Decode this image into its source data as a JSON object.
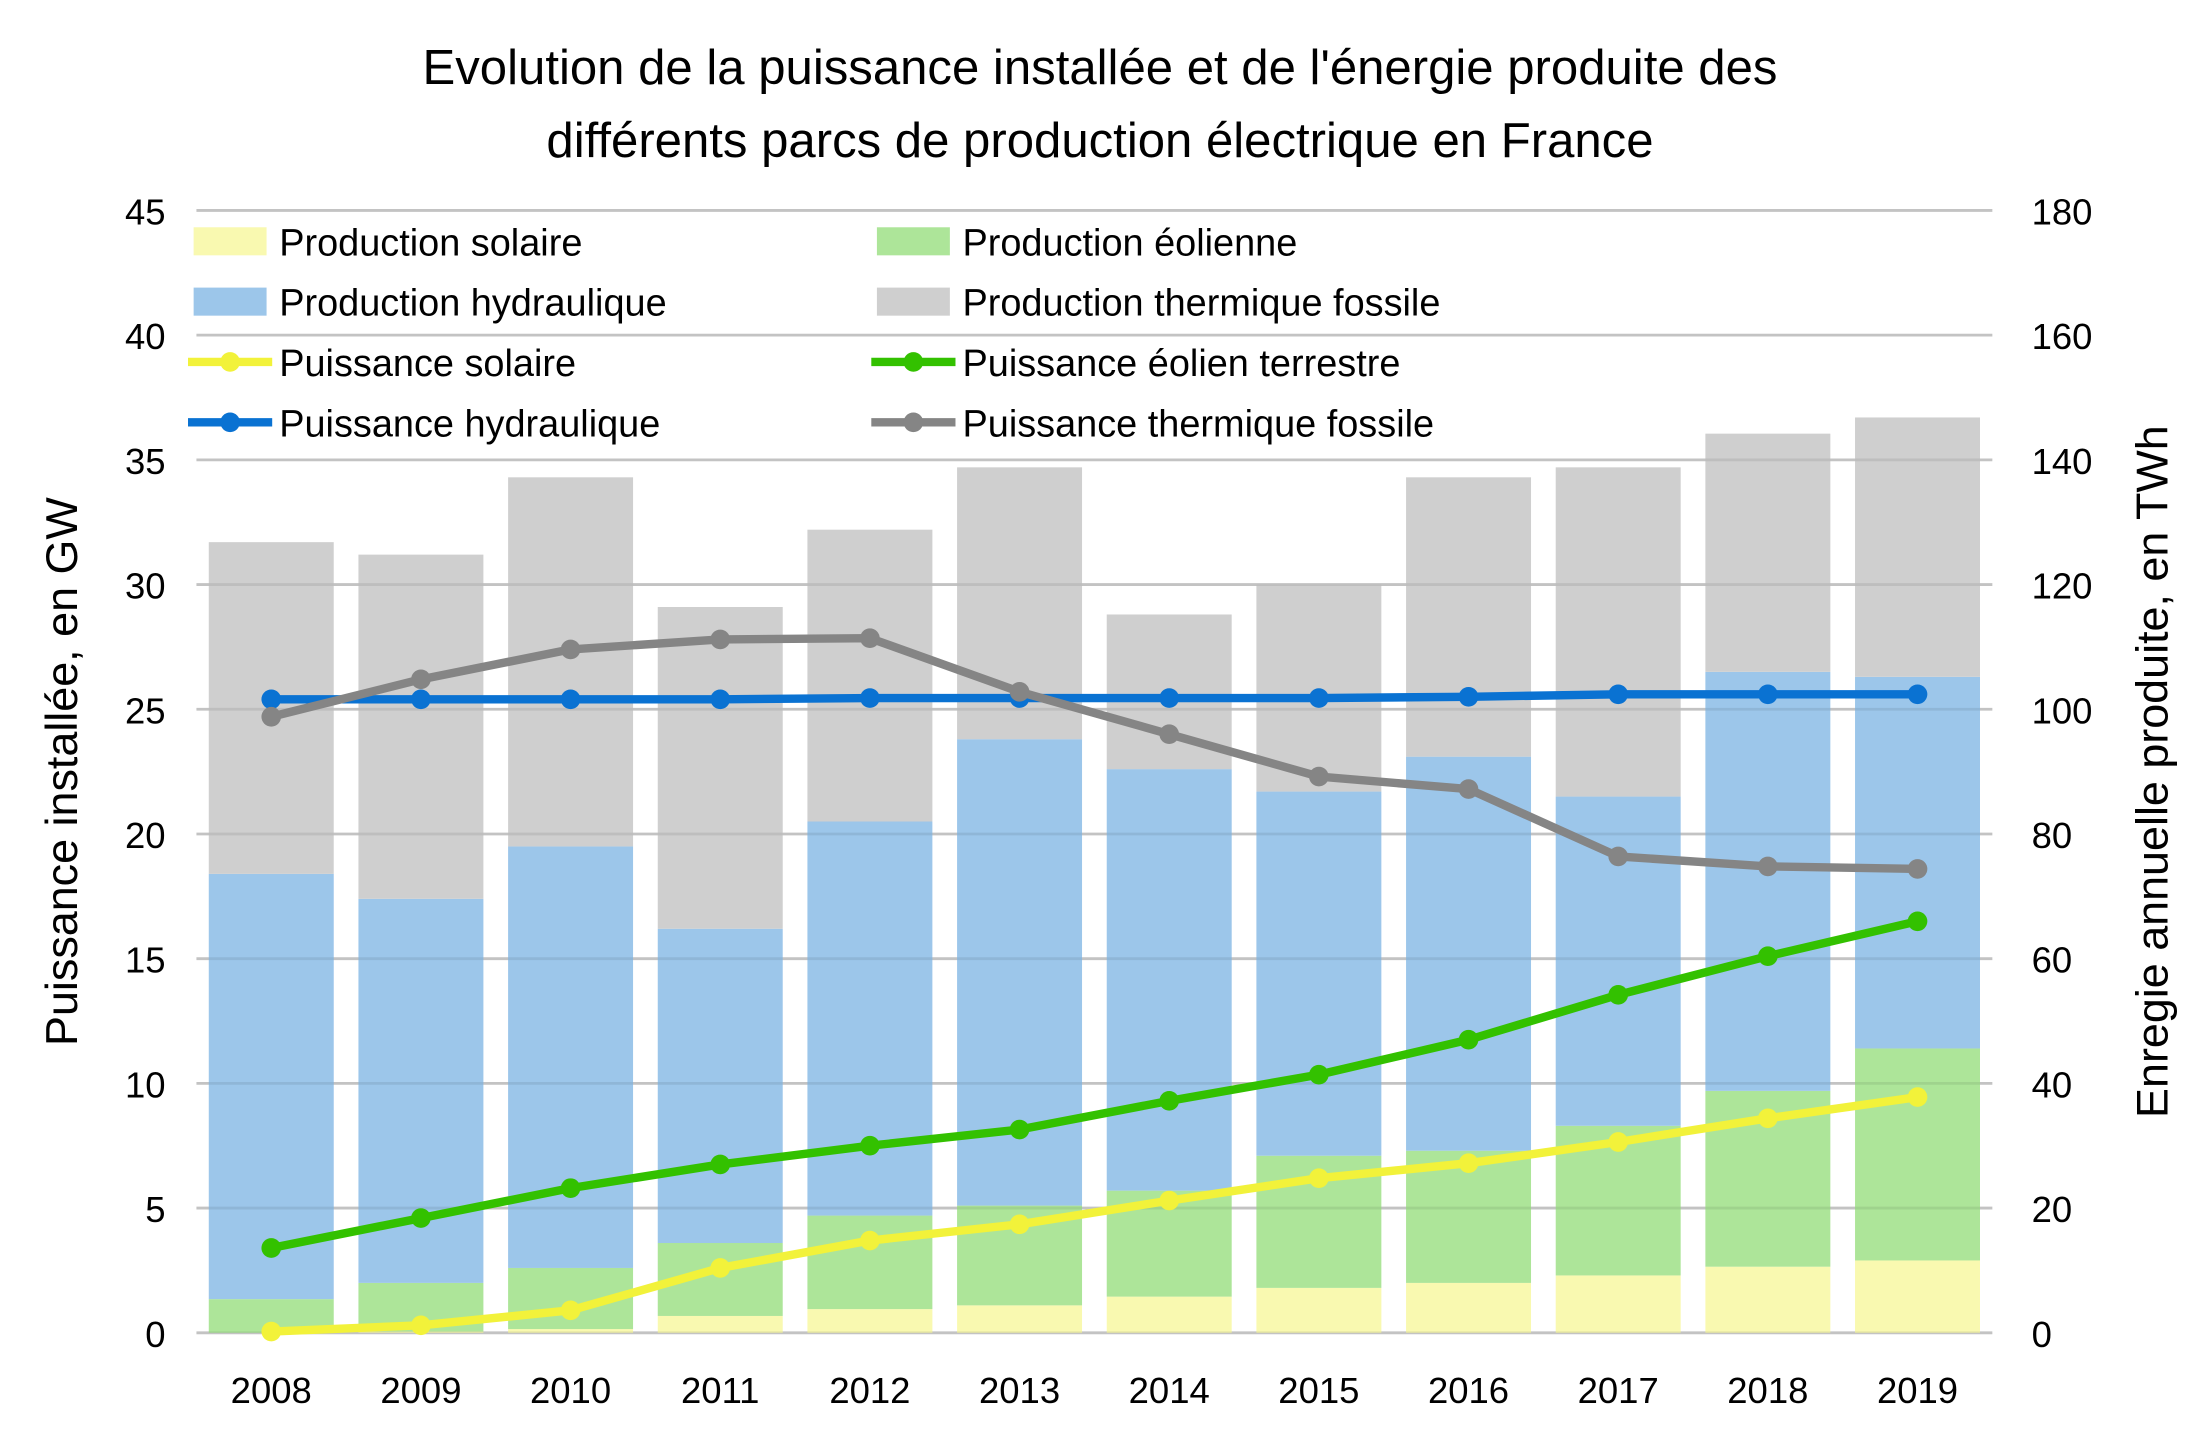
{
  "chart_data": {
    "type": "bar",
    "subtype": "stacked-bar-with-lines-dual-axis",
    "title": "Evolution de la puissance installée et de l'énergie produite des différents parcs de production électrique en France",
    "title_lines": [
      "Evolution de la puissance installée et de l'énergie produite des",
      "différents parcs de production électrique en France"
    ],
    "xlabel": "",
    "ylabel": "Puissance installée, en GW",
    "y2label": "Enregie annuelle produite, en TWh",
    "ylim": [
      0,
      45
    ],
    "y_ticks": [
      0,
      5,
      10,
      15,
      20,
      25,
      30,
      35,
      40,
      45
    ],
    "y2lim": [
      0,
      180
    ],
    "y2_ticks": [
      0,
      20,
      40,
      60,
      80,
      100,
      120,
      140,
      160,
      180
    ],
    "grid": true,
    "legend_position": "top-left",
    "categories": [
      "2008",
      "2009",
      "2010",
      "2011",
      "2012",
      "2013",
      "2014",
      "2015",
      "2016",
      "2017",
      "2018",
      "2019"
    ],
    "bar_series": [
      {
        "name": "Production solaire",
        "axis": "right",
        "color": "#f9f9b0",
        "values": [
          0.0,
          0.2,
          0.6,
          2.7,
          3.8,
          4.4,
          5.8,
          7.2,
          8.0,
          9.2,
          10.6,
          11.6
        ]
      },
      {
        "name": "Production éolienne",
        "axis": "right",
        "color": "#ade599",
        "values": [
          5.4,
          7.8,
          9.8,
          11.7,
          15.0,
          16.0,
          17.0,
          21.2,
          21.2,
          24.0,
          28.2,
          34.0
        ]
      },
      {
        "name": "Production hydraulique",
        "axis": "right",
        "color": "#9cc6ea",
        "values": [
          68.2,
          61.6,
          67.6,
          50.4,
          63.2,
          74.8,
          67.6,
          58.4,
          63.2,
          52.8,
          67.2,
          59.6
        ]
      },
      {
        "name": "Production thermique fossile",
        "axis": "right",
        "color": "#cfcfcf",
        "values": [
          53.2,
          55.2,
          59.2,
          51.6,
          46.8,
          43.6,
          24.8,
          33.2,
          44.8,
          52.8,
          38.2,
          41.6
        ]
      }
    ],
    "line_series": [
      {
        "name": "Puissance solaire",
        "axis": "left",
        "color": "#f2f23a",
        "values": [
          0.05,
          0.3,
          0.9,
          2.6,
          3.7,
          4.35,
          5.3,
          6.2,
          6.8,
          7.65,
          8.6,
          9.45
        ]
      },
      {
        "name": "Puissance éolien terrestre",
        "axis": "left",
        "color": "#33c100",
        "values": [
          3.4,
          4.6,
          5.8,
          6.75,
          7.5,
          8.15,
          9.3,
          10.35,
          11.75,
          13.55,
          15.1,
          16.5
        ]
      },
      {
        "name": "Puissance hydraulique",
        "axis": "left",
        "color": "#0a72d2",
        "values": [
          25.4,
          25.4,
          25.4,
          25.4,
          25.45,
          25.45,
          25.45,
          25.45,
          25.5,
          25.6,
          25.6,
          25.6
        ]
      },
      {
        "name": "Puissance thermique fossile",
        "axis": "left",
        "color": "#858585",
        "values": [
          24.7,
          26.2,
          27.4,
          27.8,
          27.85,
          25.7,
          24.0,
          22.3,
          21.8,
          19.1,
          18.7,
          18.6
        ]
      }
    ],
    "legend": [
      "Production solaire",
      "Production éolienne",
      "Production hydraulique",
      "Production thermique fossile",
      "Puissance solaire",
      "Puissance éolien terrestre",
      "Puissance hydraulique",
      "Puissance thermique fossile"
    ]
  }
}
